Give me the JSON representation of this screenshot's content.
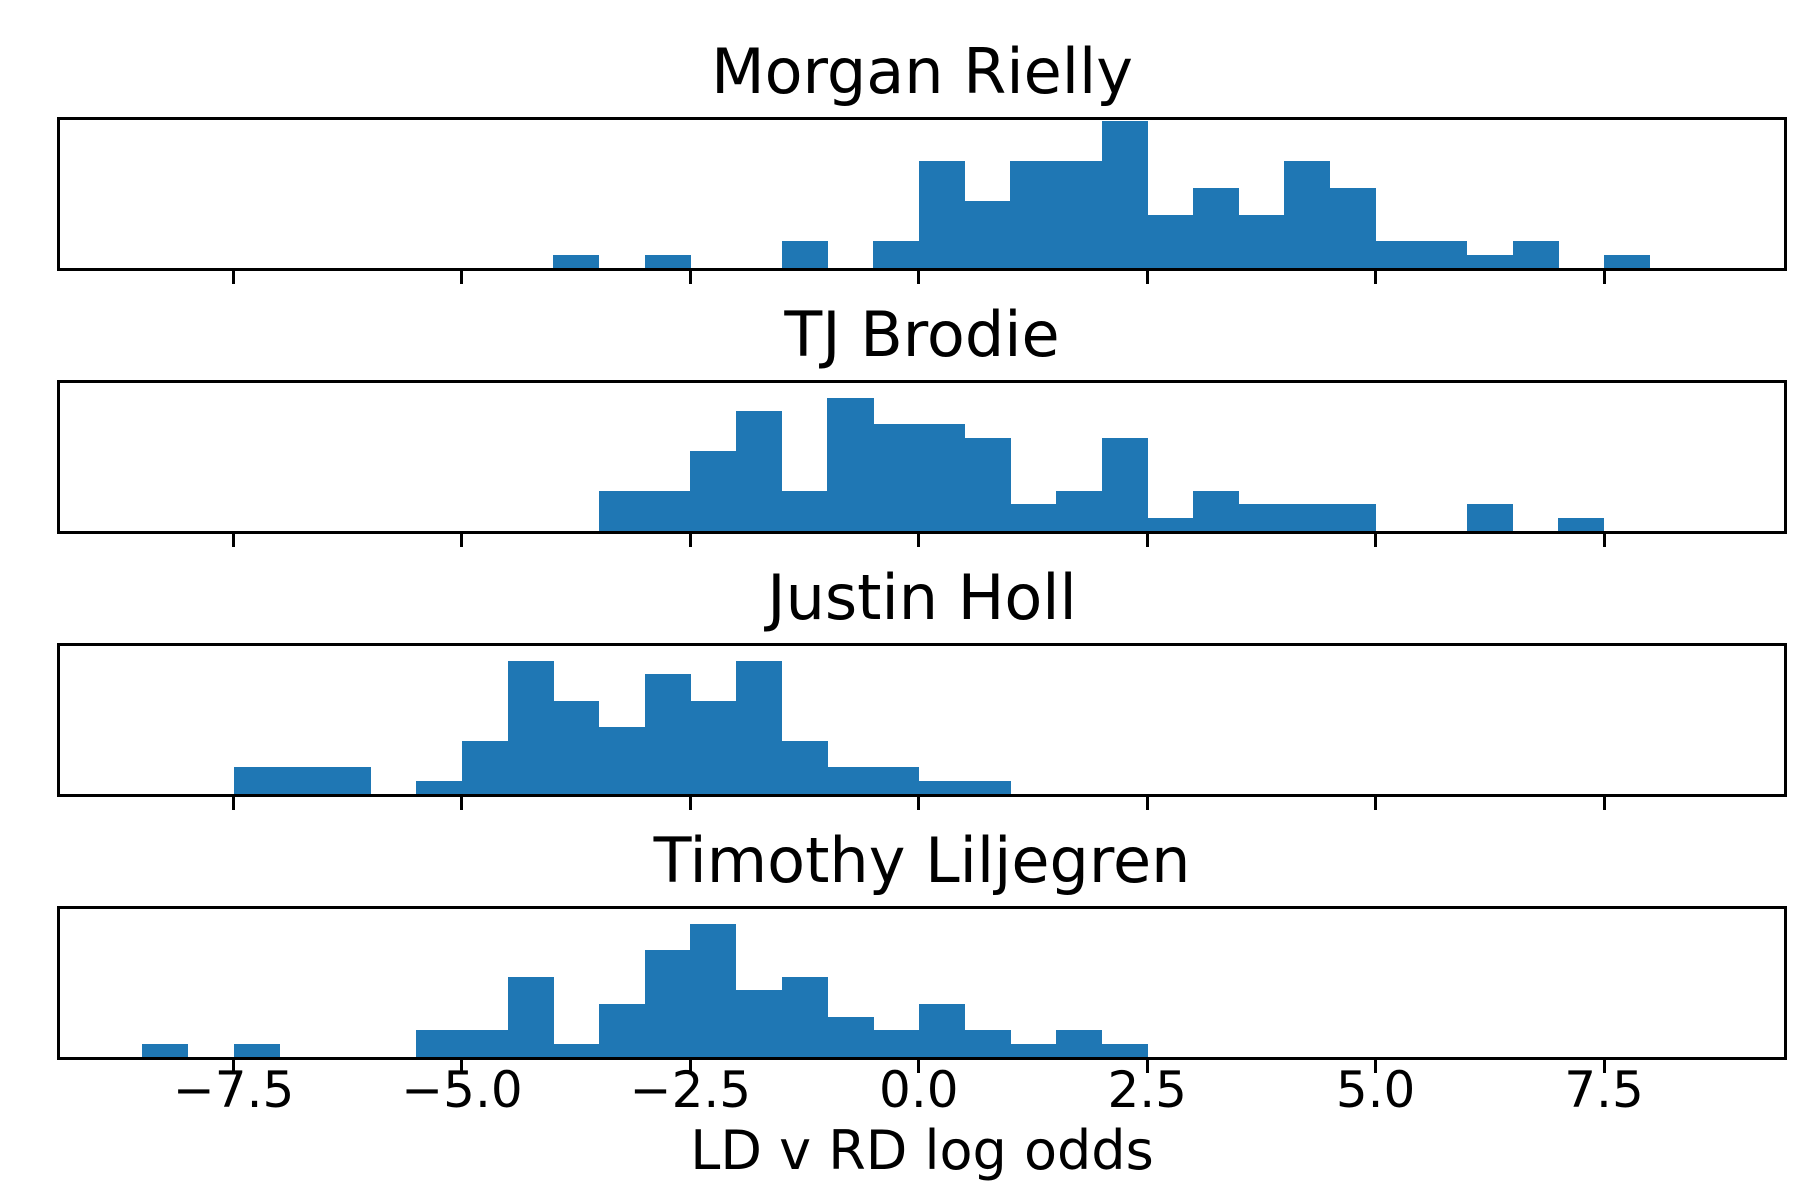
{
  "figure": {
    "background_color": "#ffffff",
    "bar_color": "#1f77b4",
    "axis_color": "#000000"
  },
  "chart_data": {
    "type": "bar",
    "variant": "histogram_small_multiples",
    "description": "Four stacked histograms sharing one x axis",
    "shared_x": {
      "xlabel": "LD v RD log odds",
      "xlim": [
        -9.4,
        9.47
      ],
      "tick_values": [
        -7.5,
        -5.0,
        -2.5,
        0.0,
        2.5,
        5.0,
        7.5
      ],
      "tick_labels": [
        "−7.5",
        "−5.0",
        "−2.5",
        "0.0",
        "2.5",
        "5.0",
        "7.5"
      ],
      "bin_width": 0.5,
      "grid": false
    },
    "subplots": [
      {
        "title": "Morgan Rielly",
        "first_bin_start": -4.0,
        "ylim": [
          0,
          11.1
        ],
        "counts": [
          1,
          0,
          1,
          0,
          0,
          2,
          0,
          2,
          8,
          5,
          8,
          8,
          11,
          4,
          6,
          4,
          8,
          6,
          2,
          2,
          1,
          2,
          0,
          1
        ]
      },
      {
        "title": "TJ Brodie",
        "first_bin_start": -3.5,
        "ylim": [
          0,
          11.1
        ],
        "counts": [
          3,
          3,
          6,
          9,
          3,
          10,
          8,
          8,
          7,
          2,
          3,
          7,
          1,
          3,
          2,
          2,
          2,
          0,
          0,
          2,
          0,
          1
        ]
      },
      {
        "title": "Justin Holl",
        "first_bin_start": -7.5,
        "ylim": [
          0,
          11.1
        ],
        "counts": [
          2,
          2,
          2,
          0,
          1,
          4,
          10,
          7,
          5,
          9,
          7,
          10,
          4,
          2,
          2,
          1,
          1
        ]
      },
      {
        "title": "Timothy Liljegren",
        "first_bin_start": -8.5,
        "ylim": [
          0,
          11.1
        ],
        "counts": [
          1,
          0,
          1,
          0,
          0,
          0,
          2,
          2,
          6,
          1,
          4,
          8,
          10,
          5,
          6,
          3,
          2,
          4,
          2,
          1,
          2,
          1
        ]
      }
    ]
  }
}
